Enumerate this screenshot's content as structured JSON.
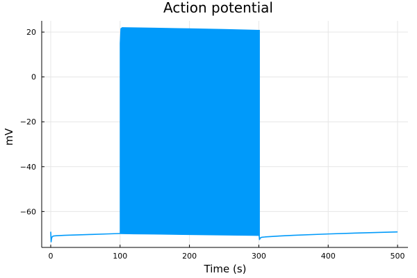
{
  "chart_data": {
    "type": "line",
    "title": "Action potential",
    "xlabel": "Time (s)",
    "ylabel": "mV",
    "xlim": [
      -13,
      515
    ],
    "ylim": [
      -76,
      25
    ],
    "xticks": [
      0,
      100,
      200,
      300,
      400,
      500
    ],
    "yticks": [
      -60,
      -40,
      -20,
      0,
      20
    ],
    "grid": true,
    "legend": "none",
    "series_color": "#009AFA",
    "series": [
      {
        "baseline": {
          "x": [
            0,
            0.6,
            1.2,
            2.2,
            4,
            8,
            20,
            40,
            60,
            80,
            99.5,
            100.5,
            120,
            150,
            200,
            250,
            300.5,
            301,
            302,
            304,
            310,
            330,
            350,
            400,
            450,
            500
          ],
          "y": [
            -69,
            -73.5,
            -72,
            -71.2,
            -70.9,
            -70.8,
            -70.6,
            -70.4,
            -70.2,
            -70.0,
            -69.8,
            -69.8,
            -69.9,
            -70.0,
            -70.2,
            -70.4,
            -70.6,
            -72.5,
            -71.8,
            -71.5,
            -71.3,
            -70.9,
            -70.6,
            -70.0,
            -69.5,
            -69.1
          ]
        },
        "spiking": {
          "x_start": 100,
          "x_end": 301,
          "upper": {
            "x": [
              100,
              101,
              103,
              150,
              200,
              250,
              300
            ],
            "y": [
              15,
              21.5,
              22,
              21.8,
              21.5,
              21.2,
              20.8
            ]
          },
          "lower": {
            "x": [
              100,
              150,
              200,
              250,
              300
            ],
            "y": [
              -69.8,
              -70.0,
              -70.2,
              -70.4,
              -70.6
            ]
          }
        }
      }
    ]
  }
}
